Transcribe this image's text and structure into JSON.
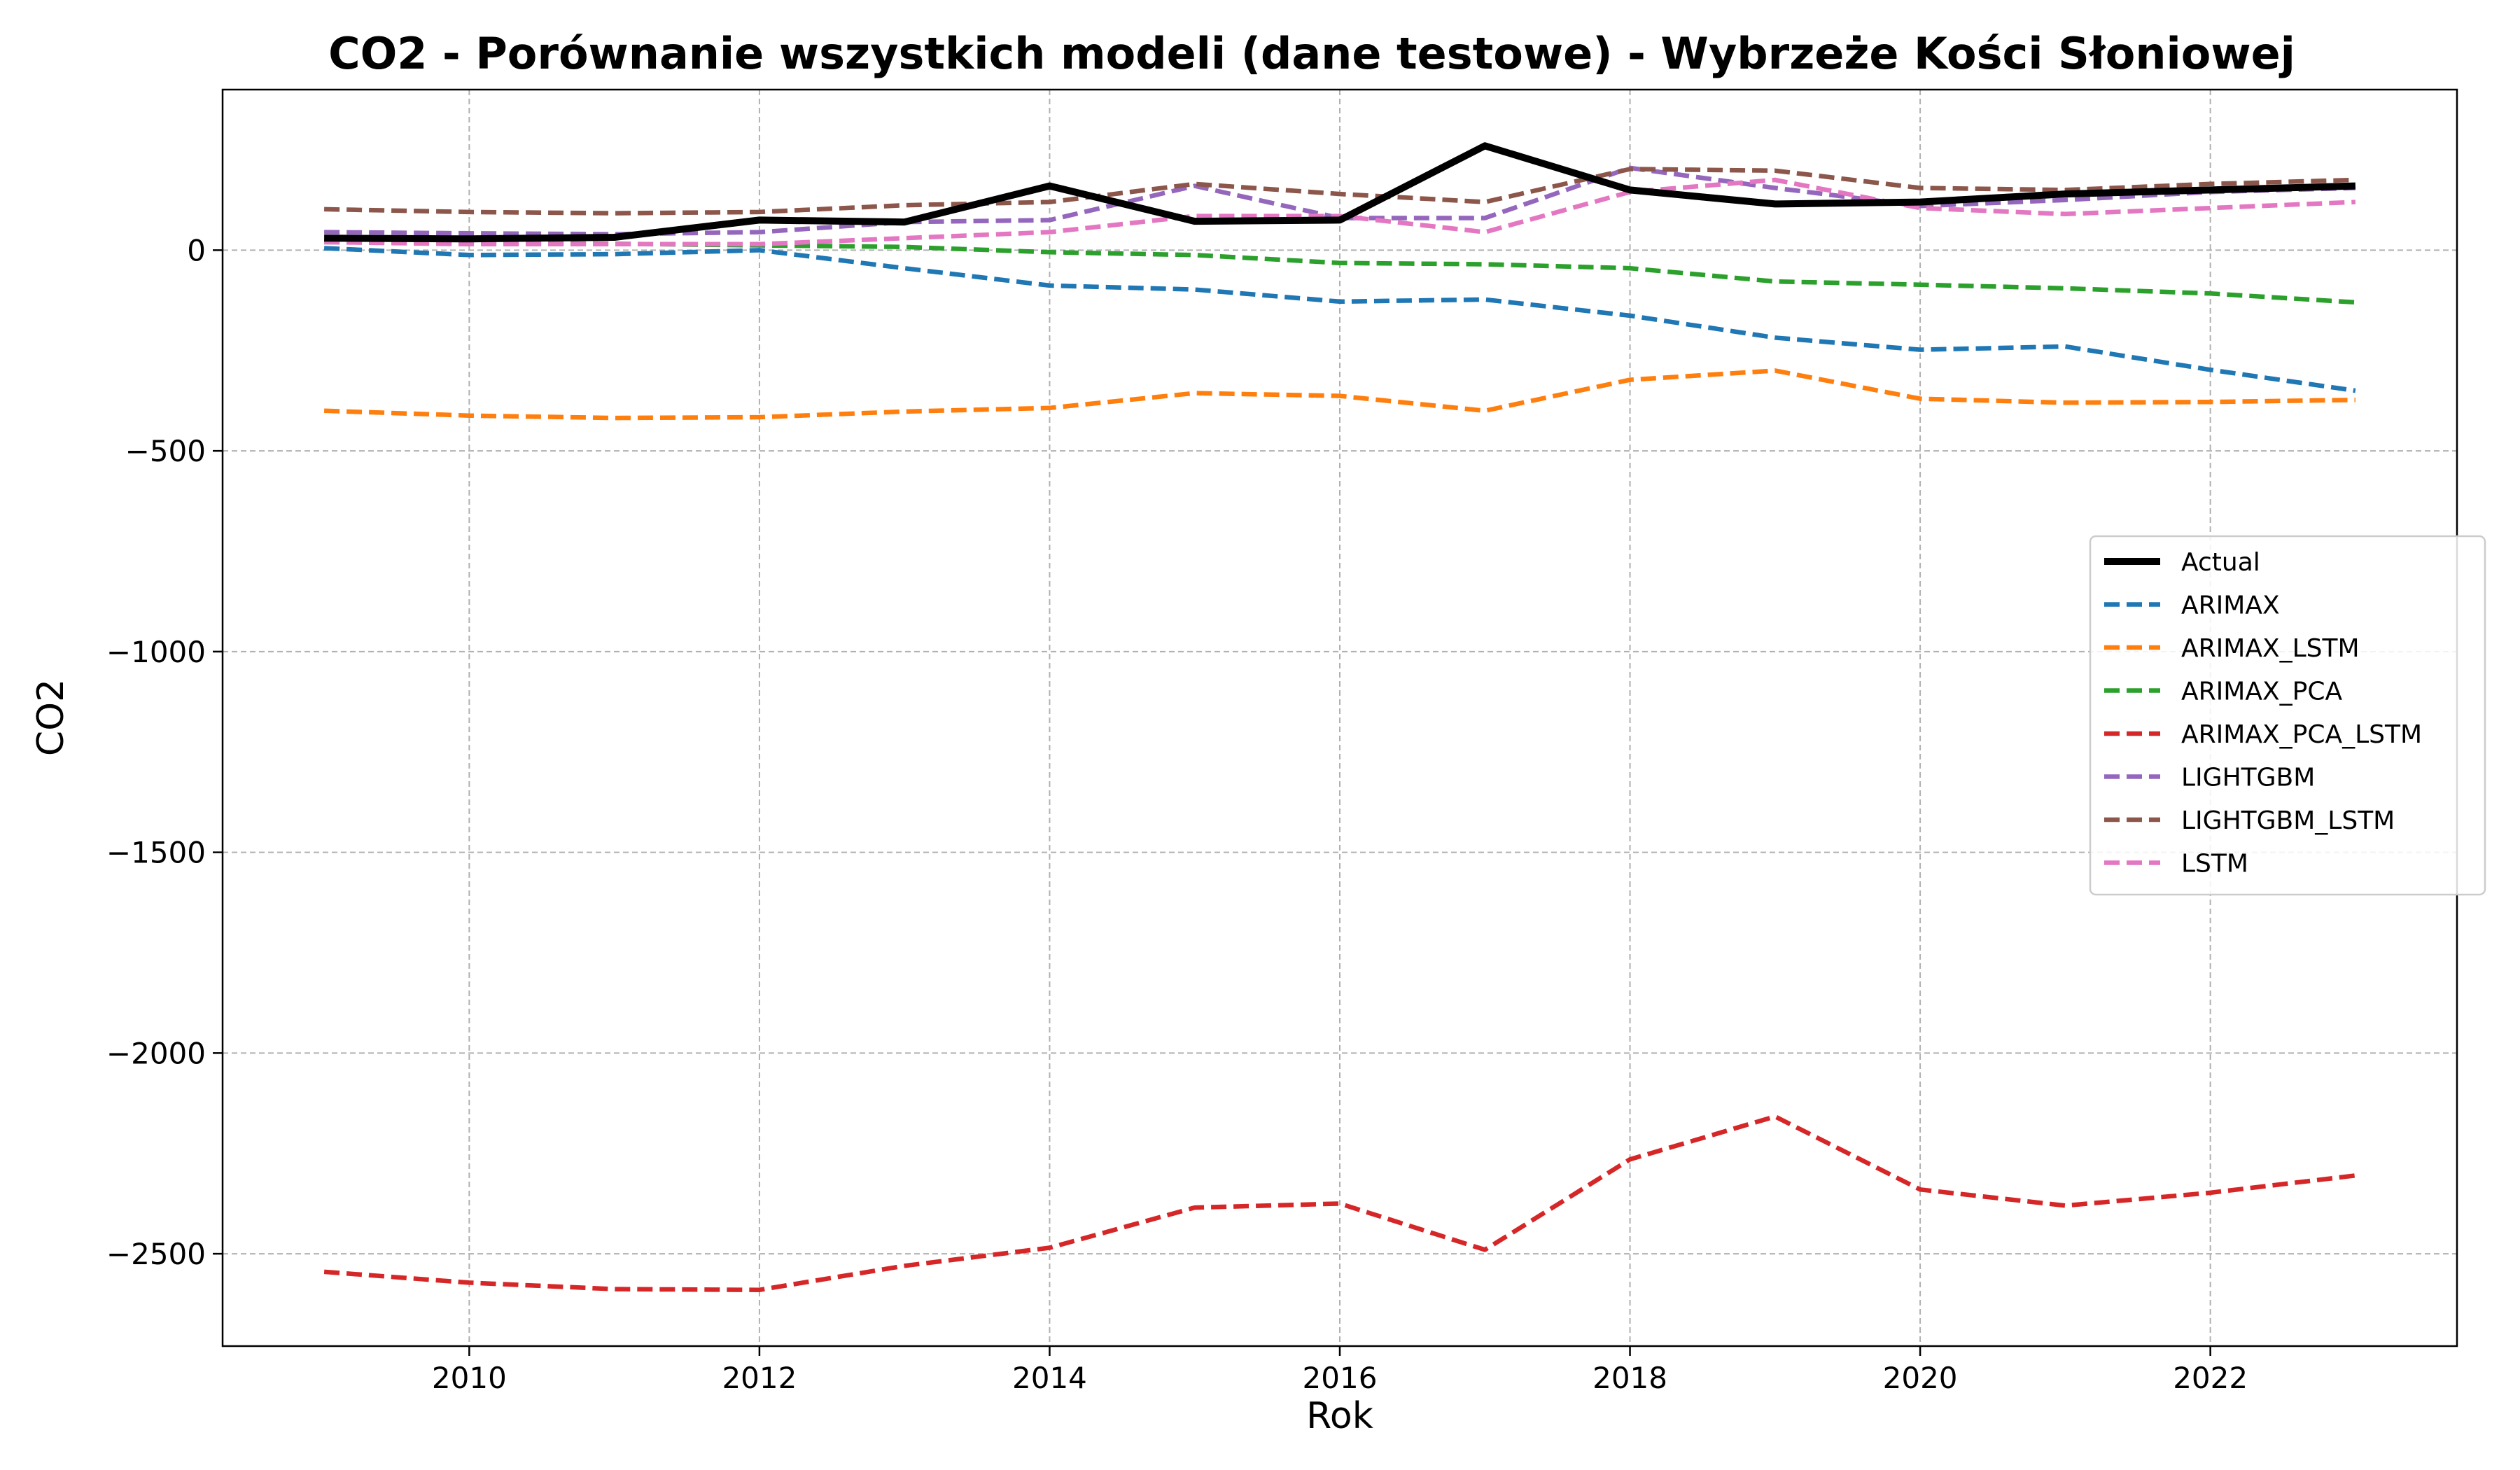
{
  "chart_data": {
    "type": "line",
    "title": "CO2 - Porównanie wszystkich modeli (dane testowe) - Wybrzeże Kości Słoniowej",
    "xlabel": "Rok",
    "ylabel": "CO2",
    "xlim": [
      2008.3,
      2023.7
    ],
    "ylim": [
      -2730,
      400
    ],
    "xticks": [
      2010,
      2012,
      2014,
      2016,
      2018,
      2020,
      2022
    ],
    "yticks": [
      0,
      -500,
      -1000,
      -1500,
      -2000,
      -2500
    ],
    "ytick_labels": [
      "0",
      "−500",
      "−1000",
      "−1500",
      "−2000",
      "−2500"
    ],
    "grid": true,
    "legend_position": "center-right",
    "x": [
      2009,
      2010,
      2011,
      2012,
      2013,
      2014,
      2015,
      2016,
      2017,
      2018,
      2019,
      2020,
      2021,
      2022,
      2023
    ],
    "series": [
      {
        "name": "Actual",
        "color": "#000000",
        "style": "solid",
        "values": [
          30,
          28,
          32,
          75,
          70,
          160,
          72,
          75,
          260,
          150,
          115,
          120,
          140,
          150,
          160
        ]
      },
      {
        "name": "ARIMAX",
        "color": "#1f77b4",
        "style": "dashed",
        "values": [
          5,
          -12,
          -10,
          0,
          -45,
          -88,
          -98,
          -128,
          -123,
          -163,
          -218,
          -248,
          -240,
          -298,
          -350
        ]
      },
      {
        "name": "ARIMAX_LSTM",
        "color": "#ff7f0e",
        "style": "dashed",
        "values": [
          -400,
          -412,
          -418,
          -416,
          -402,
          -393,
          -356,
          -363,
          -400,
          -323,
          -300,
          -370,
          -380,
          -378,
          -373
        ]
      },
      {
        "name": "ARIMAX_PCA",
        "color": "#2ca02c",
        "style": "dashed",
        "values": [
          20,
          18,
          16,
          12,
          8,
          -5,
          -12,
          -32,
          -35,
          -45,
          -78,
          -86,
          -95,
          -108,
          -130
        ]
      },
      {
        "name": "ARIMAX_PCA_LSTM",
        "color": "#d62728",
        "style": "dashed",
        "values": [
          -2545,
          -2572,
          -2588,
          -2590,
          -2530,
          -2485,
          -2385,
          -2375,
          -2490,
          -2265,
          -2158,
          -2340,
          -2380,
          -2348,
          -2305
        ]
      },
      {
        "name": "LIGHTGBM",
        "color": "#9467bd",
        "style": "dashed",
        "values": [
          45,
          42,
          40,
          45,
          70,
          75,
          160,
          80,
          80,
          205,
          155,
          110,
          125,
          145,
          155
        ]
      },
      {
        "name": "LIGHTGBM_LSTM",
        "color": "#8c564b",
        "style": "dashed",
        "values": [
          102,
          95,
          92,
          95,
          112,
          120,
          165,
          140,
          120,
          202,
          198,
          155,
          150,
          165,
          175
        ]
      },
      {
        "name": "LSTM",
        "color": "#e377c2",
        "style": "dashed",
        "values": [
          20,
          15,
          15,
          15,
          30,
          45,
          85,
          85,
          45,
          145,
          175,
          105,
          90,
          105,
          120
        ]
      }
    ]
  }
}
